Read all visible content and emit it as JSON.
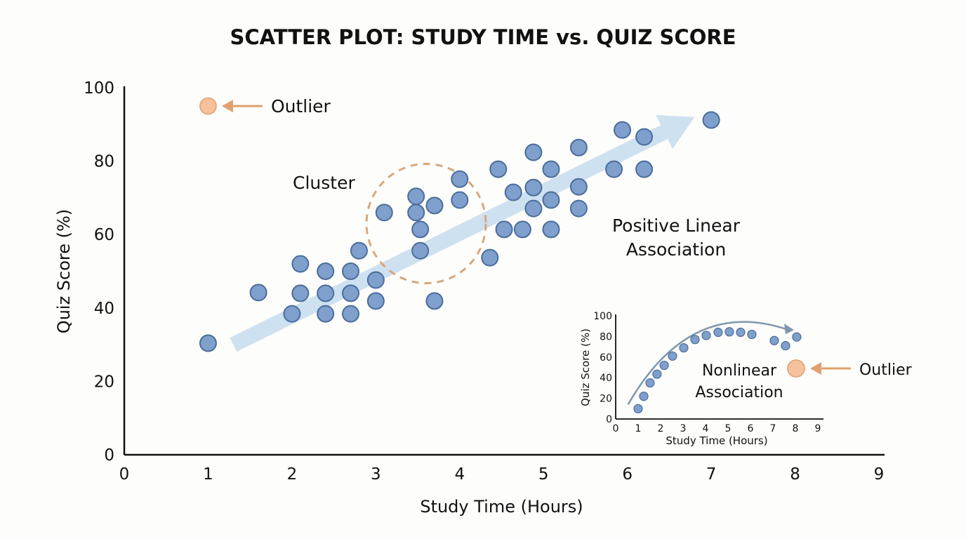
{
  "chart_data": [
    {
      "type": "scatter",
      "title": "SCATTER PLOT: STUDY TIME vs. QUIZ SCORE",
      "xlabel": "Study Time (Hours)",
      "ylabel": "Quiz Score (%)",
      "xlim": [
        0,
        9
      ],
      "ylim": [
        0,
        100
      ],
      "xticks": [
        "0",
        "1",
        "2",
        "3",
        "4",
        "5",
        "6",
        "7",
        "8",
        "9"
      ],
      "yticks": [
        "0",
        "20",
        "40",
        "60",
        "80",
        "100"
      ],
      "grid": false,
      "point_color": "#7f9fcc",
      "outlier_color": "#f5c29c",
      "trend_color": "#c9deee",
      "cluster_color": "#d9a77a",
      "points": [
        [
          1.0,
          30.4
        ],
        [
          1.6,
          44.2
        ],
        [
          2.1,
          52
        ],
        [
          2.1,
          44
        ],
        [
          2.0,
          38.4
        ],
        [
          2.4,
          50
        ],
        [
          2.4,
          44
        ],
        [
          2.4,
          38.4
        ],
        [
          2.7,
          50
        ],
        [
          2.7,
          44
        ],
        [
          2.7,
          38.4
        ],
        [
          2.8,
          55.6
        ],
        [
          3.0,
          47.6
        ],
        [
          3.0,
          41.9
        ],
        [
          3.1,
          66
        ],
        [
          3.48,
          70.4
        ],
        [
          3.48,
          66
        ],
        [
          3.53,
          61.4
        ],
        [
          3.53,
          55.6
        ],
        [
          3.7,
          67.9
        ],
        [
          3.7,
          41.9
        ],
        [
          4.0,
          75.1
        ],
        [
          4.0,
          69.4
        ],
        [
          4.36,
          53.7
        ],
        [
          4.46,
          77.8
        ],
        [
          4.53,
          61.4
        ],
        [
          4.64,
          71.5
        ],
        [
          4.75,
          61.4
        ],
        [
          4.88,
          82.4
        ],
        [
          4.88,
          72.8
        ],
        [
          4.88,
          67.1
        ],
        [
          5.09,
          77.8
        ],
        [
          5.09,
          69.4
        ],
        [
          5.09,
          61.4
        ],
        [
          5.42,
          83.7
        ],
        [
          5.42,
          73
        ],
        [
          5.42,
          67.1
        ],
        [
          5.84,
          77.8
        ],
        [
          5.94,
          88.5
        ],
        [
          6.2,
          86.6
        ],
        [
          6.2,
          77.8
        ],
        [
          7.0,
          91.2
        ]
      ],
      "outlier": [
        1.0,
        95
      ],
      "trend_arrow": {
        "from": [
          1.3,
          30
        ],
        "to": [
          6.8,
          92
        ]
      },
      "cluster_center": [
        3.6,
        63
      ],
      "annotations": {
        "outlier": "Outlier",
        "cluster": "Cluster",
        "association_line1": "Positive Linear",
        "association_line2": "Association"
      }
    },
    {
      "type": "scatter",
      "title": "",
      "xlabel": "Study Time (Hours)",
      "ylabel": "Quiz Score (%)",
      "xlim": [
        0,
        9
      ],
      "ylim": [
        0,
        100
      ],
      "xticks": [
        "0",
        "1",
        "2",
        "3",
        "4",
        "5",
        "6",
        "7",
        "8",
        "9"
      ],
      "yticks": [
        "0",
        "20",
        "40",
        "60",
        "80",
        "100"
      ],
      "grid": false,
      "points": [
        [
          1.0,
          10
        ],
        [
          1.25,
          22
        ],
        [
          1.53,
          35
        ],
        [
          1.84,
          43.5
        ],
        [
          2.16,
          52
        ],
        [
          2.53,
          61
        ],
        [
          3.03,
          69
        ],
        [
          3.53,
          77
        ],
        [
          4.03,
          81
        ],
        [
          4.56,
          84
        ],
        [
          5.06,
          84.5
        ],
        [
          5.56,
          84
        ],
        [
          6.06,
          82
        ],
        [
          7.06,
          76
        ],
        [
          7.56,
          71
        ],
        [
          8.06,
          79.5
        ]
      ],
      "outlier": [
        8.03,
        49
      ],
      "annotations": {
        "outlier": "Outlier",
        "association_line1": "Nonlinear",
        "association_line2": "Association"
      }
    }
  ]
}
